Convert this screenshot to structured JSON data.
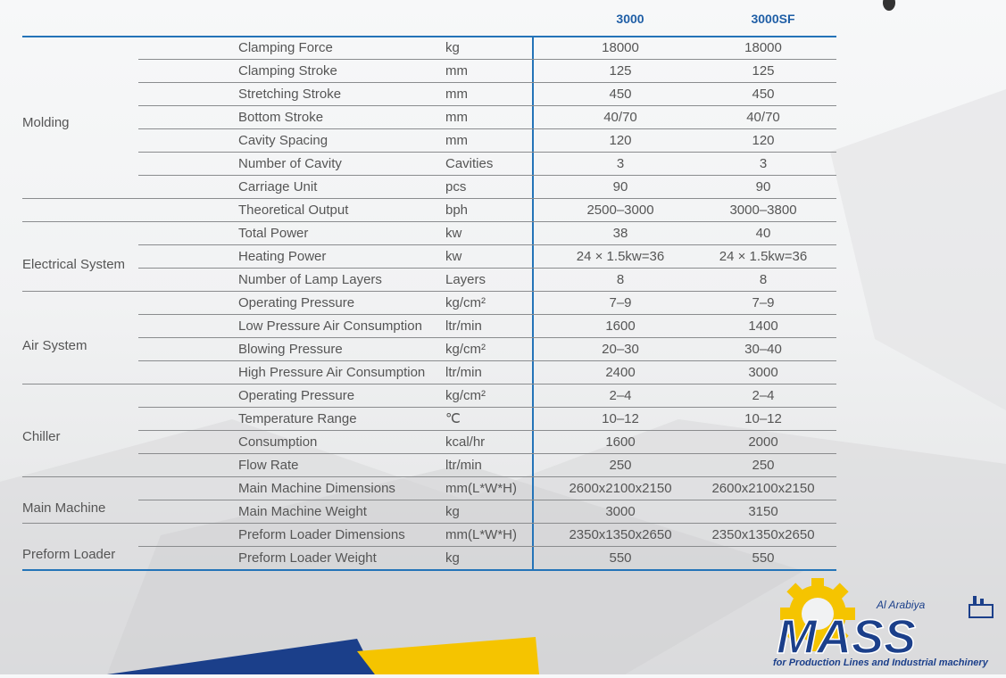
{
  "columns": [
    "3000",
    "3000SF"
  ],
  "categories": [
    "Molding",
    "Electrical System",
    "Air System",
    "Chiller",
    "Main Machine",
    "Preform Loader"
  ],
  "rows": [
    {
      "param": "Clamping Force",
      "unit": "kg",
      "v1": "18000",
      "v2": "18000"
    },
    {
      "param": "Clamping Stroke",
      "unit": "mm",
      "v1": "125",
      "v2": "125"
    },
    {
      "param": "Stretching Stroke",
      "unit": "mm",
      "v1": "450",
      "v2": "450"
    },
    {
      "param": "Bottom Stroke",
      "unit": "mm",
      "v1": "40/70",
      "v2": "40/70"
    },
    {
      "param": "Cavity Spacing",
      "unit": "mm",
      "v1": "120",
      "v2": "120"
    },
    {
      "param": "Number of Cavity",
      "unit": "Cavities",
      "v1": "3",
      "v2": "3"
    },
    {
      "param": "Carriage Unit",
      "unit": "pcs",
      "v1": "90",
      "v2": "90"
    },
    {
      "param": "Theoretical Output",
      "unit": "bph",
      "v1": "2500–3000",
      "v2": "3000–3800"
    },
    {
      "param": "Total Power",
      "unit": "kw",
      "v1": "38",
      "v2": "40"
    },
    {
      "param": "Heating Power",
      "unit": "kw",
      "v1": "24 × 1.5kw=36",
      "v2": "24 × 1.5kw=36"
    },
    {
      "param": "Number of Lamp Layers",
      "unit": "Layers",
      "v1": "8",
      "v2": "8"
    },
    {
      "param": "Operating Pressure",
      "unit": "kg/cm²",
      "v1": "7–9",
      "v2": "7–9"
    },
    {
      "param": "Low Pressure Air Consumption",
      "unit": "ltr/min",
      "v1": "1600",
      "v2": "1400"
    },
    {
      "param": "Blowing Pressure",
      "unit": "kg/cm²",
      "v1": "20–30",
      "v2": "30–40"
    },
    {
      "param": "High Pressure Air Consumption",
      "unit": "ltr/min",
      "v1": "2400",
      "v2": "3000"
    },
    {
      "param": "Operating Pressure",
      "unit": "kg/cm²",
      "v1": "2–4",
      "v2": "2–4"
    },
    {
      "param": "Temperature Range",
      "unit": "℃",
      "v1": "10–12",
      "v2": "10–12"
    },
    {
      "param": "Consumption",
      "unit": "kcal/hr",
      "v1": "1600",
      "v2": "2000"
    },
    {
      "param": "Flow Rate",
      "unit": "ltr/min",
      "v1": "250",
      "v2": "250"
    },
    {
      "param": "Main Machine Dimensions",
      "unit": "mm(L*W*H)",
      "v1": "2600x2100x2150",
      "v2": "2600x2100x2150"
    },
    {
      "param": "Main Machine Weight",
      "unit": "kg",
      "v1": "3000",
      "v2": "3150"
    },
    {
      "param": "Preform Loader Dimensions",
      "unit": "mm(L*W*H)",
      "v1": "2350x1350x2650",
      "v2": "2350x1350x2650"
    },
    {
      "param": "Preform Loader Weight",
      "unit": "kg",
      "v1": "550",
      "v2": "550"
    }
  ],
  "logo": {
    "brand": "MASS",
    "brand_top": "Al Arabiya",
    "tagline": "for Production Lines and Industrial machinery",
    "colors": {
      "blue": "#1b3f8a",
      "yellow": "#f5c400"
    }
  }
}
